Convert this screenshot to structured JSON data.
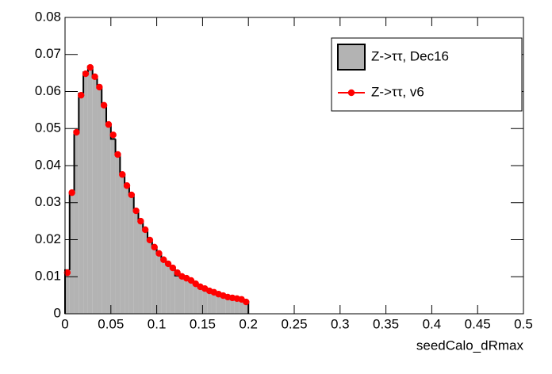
{
  "chart_data": {
    "type": "histogram",
    "x_label": "seedCalo_dRmax",
    "bins": [
      0,
      0.005,
      0.01,
      0.015,
      0.02,
      0.025,
      0.03,
      0.035,
      0.04,
      0.045,
      0.05,
      0.055,
      0.06,
      0.065,
      0.07,
      0.075,
      0.08,
      0.085,
      0.09,
      0.095,
      0.1,
      0.105,
      0.11,
      0.115,
      0.12,
      0.125,
      0.13,
      0.135,
      0.14,
      0.145,
      0.15,
      0.155,
      0.16,
      0.165,
      0.17,
      0.175,
      0.18,
      0.185,
      0.19,
      0.195,
      0.2
    ],
    "series": [
      {
        "name": "Z->ττ, Dec16",
        "style": "filled",
        "color": "#b3b3b3",
        "values": [
          0.0118,
          0.0325,
          0.0493,
          0.0595,
          0.0652,
          0.0668,
          0.0638,
          0.061,
          0.0565,
          0.051,
          0.0472,
          0.043,
          0.0378,
          0.0345,
          0.0323,
          0.028,
          0.0252,
          0.023,
          0.02,
          0.0182,
          0.0165,
          0.0148,
          0.0137,
          0.0126,
          0.0103,
          0.01,
          0.0095,
          0.009,
          0.0082,
          0.0074,
          0.0068,
          0.0063,
          0.0058,
          0.0054,
          0.005,
          0.0046,
          0.0044,
          0.0042,
          0.0039,
          0.0032
        ]
      },
      {
        "name": "Z->ττ, v6",
        "style": "markers",
        "color": "#ff0000",
        "values": [
          0.0111,
          0.0327,
          0.049,
          0.059,
          0.0648,
          0.0665,
          0.064,
          0.0612,
          0.0563,
          0.0511,
          0.0483,
          0.043,
          0.0376,
          0.0346,
          0.0321,
          0.0278,
          0.025,
          0.0227,
          0.0199,
          0.018,
          0.0163,
          0.0146,
          0.0135,
          0.0124,
          0.0111,
          0.0101,
          0.0096,
          0.009,
          0.0081,
          0.0073,
          0.0068,
          0.0062,
          0.0058,
          0.0053,
          0.0049,
          0.0045,
          0.0043,
          0.0041,
          0.0039,
          0.0032
        ]
      }
    ],
    "xlim": [
      0,
      0.5
    ],
    "xticks": [
      0,
      0.05,
      0.1,
      0.15,
      0.2,
      0.25,
      0.3,
      0.35,
      0.4,
      0.45,
      0.5
    ],
    "ylim": [
      0,
      0.08
    ],
    "yticks": [
      0,
      0.01,
      0.02,
      0.03,
      0.04,
      0.05,
      0.06,
      0.07,
      0.08
    ],
    "legend": "upper right"
  }
}
